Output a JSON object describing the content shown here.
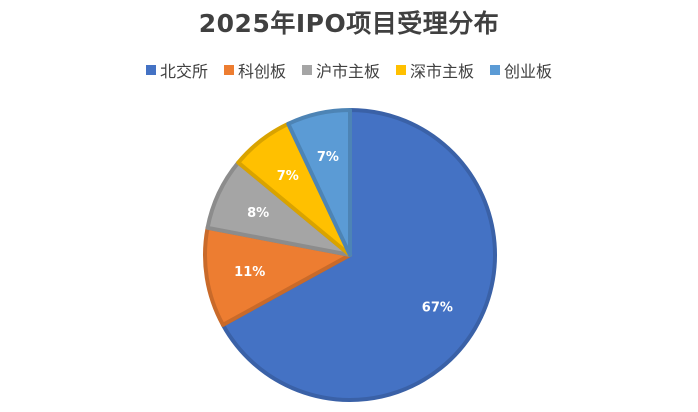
{
  "chart_data": {
    "type": "pie",
    "title": "2025年IPO项目受理分布",
    "categories": [
      "北交所",
      "科创板",
      "沪市主板",
      "深市主板",
      "创业板"
    ],
    "values": [
      67,
      11,
      8,
      7,
      7
    ],
    "data_labels": [
      "67%",
      "11%",
      "8%",
      "7%",
      "7%"
    ],
    "colors": [
      "#4472C4",
      "#ED7D31",
      "#A5A5A5",
      "#FFC000",
      "#5B9BD5"
    ],
    "start_angle": "12 o'clock",
    "direction": "clockwise",
    "legend_position": "top"
  }
}
